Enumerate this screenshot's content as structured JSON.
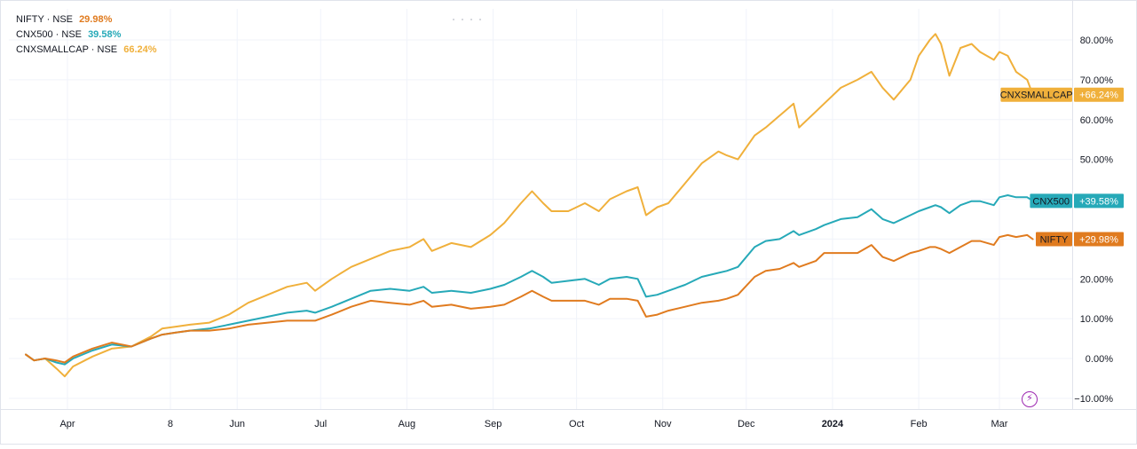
{
  "legend": [
    {
      "symbol": "NIFTY",
      "exchange": "NSE",
      "value": "29.98%",
      "color": "#e07b1f"
    },
    {
      "symbol": "CNX500",
      "exchange": "NSE",
      "value": "39.58%",
      "color": "#26a9b8"
    },
    {
      "symbol": "CNXSMALLCAP",
      "exchange": "NSE",
      "value": "66.24%",
      "color": "#f0b03b"
    }
  ],
  "chart_data": {
    "type": "line",
    "grid": true,
    "y_axis_position": "right",
    "ylim": [
      -12,
      85
    ],
    "y_ticks": [
      80,
      70,
      60,
      50,
      40,
      30,
      20,
      10,
      0,
      -10
    ],
    "y_tick_labels": [
      "80.00%",
      "70.00%",
      "60.00%",
      "50.00%",
      "40.00%",
      "30.00%",
      "20.00%",
      "10.00%",
      "0.00%",
      "−10.00%"
    ],
    "x_range": [
      "2023-03-17",
      "2024-03-17"
    ],
    "x_ticks": [
      {
        "date": "2023-04-01",
        "label": "Apr",
        "bold": false
      },
      {
        "date": "2023-05-08",
        "label": "8",
        "bold": false
      },
      {
        "date": "2023-06-01",
        "label": "Jun",
        "bold": false
      },
      {
        "date": "2023-07-01",
        "label": "Jul",
        "bold": false
      },
      {
        "date": "2023-08-01",
        "label": "Aug",
        "bold": false
      },
      {
        "date": "2023-09-01",
        "label": "Sep",
        "bold": false
      },
      {
        "date": "2023-10-01",
        "label": "Oct",
        "bold": false
      },
      {
        "date": "2023-11-01",
        "label": "Nov",
        "bold": false
      },
      {
        "date": "2023-12-01",
        "label": "Dec",
        "bold": false
      },
      {
        "date": "2024-01-01",
        "label": "2024",
        "bold": true
      },
      {
        "date": "2024-02-01",
        "label": "Feb",
        "bold": false
      },
      {
        "date": "2024-03-01",
        "label": "Mar",
        "bold": false
      }
    ],
    "series": [
      {
        "name": "CNXSMALLCAP",
        "color": "#f0b03b",
        "end_label": "CNXSMALLCAP",
        "end_value": "+66.24%",
        "end_y": 66.24,
        "points": [
          [
            "2023-03-17",
            1
          ],
          [
            "2023-03-20",
            -0.5
          ],
          [
            "2023-03-24",
            0
          ],
          [
            "2023-03-28",
            -2.5
          ],
          [
            "2023-03-31",
            -4.5
          ],
          [
            "2023-04-03",
            -2
          ],
          [
            "2023-04-10",
            0.5
          ],
          [
            "2023-04-17",
            2.5
          ],
          [
            "2023-04-24",
            3
          ],
          [
            "2023-05-01",
            5.5
          ],
          [
            "2023-05-05",
            7.5
          ],
          [
            "2023-05-10",
            8
          ],
          [
            "2023-05-15",
            8.5
          ],
          [
            "2023-05-22",
            9
          ],
          [
            "2023-05-29",
            11
          ],
          [
            "2023-06-05",
            14
          ],
          [
            "2023-06-12",
            16
          ],
          [
            "2023-06-19",
            18
          ],
          [
            "2023-06-26",
            19
          ],
          [
            "2023-06-29",
            17
          ],
          [
            "2023-07-05",
            20
          ],
          [
            "2023-07-12",
            23
          ],
          [
            "2023-07-19",
            25
          ],
          [
            "2023-07-26",
            27
          ],
          [
            "2023-08-02",
            28
          ],
          [
            "2023-08-07",
            30
          ],
          [
            "2023-08-10",
            27
          ],
          [
            "2023-08-17",
            29
          ],
          [
            "2023-08-24",
            28
          ],
          [
            "2023-08-31",
            31
          ],
          [
            "2023-09-05",
            34
          ],
          [
            "2023-09-11",
            39
          ],
          [
            "2023-09-15",
            42
          ],
          [
            "2023-09-19",
            39
          ],
          [
            "2023-09-22",
            37
          ],
          [
            "2023-09-28",
            37
          ],
          [
            "2023-10-04",
            39
          ],
          [
            "2023-10-09",
            37
          ],
          [
            "2023-10-13",
            40
          ],
          [
            "2023-10-19",
            42
          ],
          [
            "2023-10-23",
            43
          ],
          [
            "2023-10-26",
            36
          ],
          [
            "2023-10-30",
            38
          ],
          [
            "2023-11-03",
            39
          ],
          [
            "2023-11-09",
            44
          ],
          [
            "2023-11-15",
            49
          ],
          [
            "2023-11-21",
            52
          ],
          [
            "2023-11-24",
            51
          ],
          [
            "2023-11-28",
            50
          ],
          [
            "2023-12-04",
            56
          ],
          [
            "2023-12-08",
            58
          ],
          [
            "2023-12-13",
            61
          ],
          [
            "2023-12-18",
            64
          ],
          [
            "2023-12-20",
            58
          ],
          [
            "2023-12-26",
            62
          ],
          [
            "2023-12-29",
            64
          ],
          [
            "2024-01-04",
            68
          ],
          [
            "2024-01-10",
            70
          ],
          [
            "2024-01-15",
            72
          ],
          [
            "2024-01-19",
            68
          ],
          [
            "2024-01-23",
            65
          ],
          [
            "2024-01-29",
            70
          ],
          [
            "2024-02-01",
            76
          ],
          [
            "2024-02-05",
            80
          ],
          [
            "2024-02-07",
            81.5
          ],
          [
            "2024-02-09",
            79
          ],
          [
            "2024-02-12",
            71
          ],
          [
            "2024-02-16",
            78
          ],
          [
            "2024-02-20",
            79
          ],
          [
            "2024-02-23",
            77
          ],
          [
            "2024-02-28",
            75
          ],
          [
            "2024-03-01",
            77
          ],
          [
            "2024-03-04",
            76
          ],
          [
            "2024-03-07",
            72
          ],
          [
            "2024-03-11",
            70
          ],
          [
            "2024-03-13",
            66.24
          ]
        ]
      },
      {
        "name": "CNX500",
        "color": "#26a9b8",
        "end_label": "CNX500",
        "end_value": "+39.58%",
        "end_y": 39.58,
        "points": [
          [
            "2023-03-17",
            1
          ],
          [
            "2023-03-20",
            -0.5
          ],
          [
            "2023-03-24",
            0
          ],
          [
            "2023-03-28",
            -1
          ],
          [
            "2023-03-31",
            -1.5
          ],
          [
            "2023-04-03",
            0
          ],
          [
            "2023-04-10",
            2
          ],
          [
            "2023-04-17",
            3.5
          ],
          [
            "2023-04-24",
            3
          ],
          [
            "2023-05-01",
            5
          ],
          [
            "2023-05-05",
            6
          ],
          [
            "2023-05-10",
            6.5
          ],
          [
            "2023-05-15",
            7
          ],
          [
            "2023-05-22",
            7.5
          ],
          [
            "2023-05-29",
            8.5
          ],
          [
            "2023-06-05",
            9.5
          ],
          [
            "2023-06-12",
            10.5
          ],
          [
            "2023-06-19",
            11.5
          ],
          [
            "2023-06-26",
            12
          ],
          [
            "2023-06-29",
            11.5
          ],
          [
            "2023-07-05",
            13
          ],
          [
            "2023-07-12",
            15
          ],
          [
            "2023-07-19",
            17
          ],
          [
            "2023-07-26",
            17.5
          ],
          [
            "2023-08-02",
            17
          ],
          [
            "2023-08-07",
            18
          ],
          [
            "2023-08-10",
            16.5
          ],
          [
            "2023-08-17",
            17
          ],
          [
            "2023-08-24",
            16.5
          ],
          [
            "2023-08-31",
            17.5
          ],
          [
            "2023-09-05",
            18.5
          ],
          [
            "2023-09-11",
            20.5
          ],
          [
            "2023-09-15",
            22
          ],
          [
            "2023-09-19",
            20.5
          ],
          [
            "2023-09-22",
            19
          ],
          [
            "2023-09-28",
            19.5
          ],
          [
            "2023-10-04",
            20
          ],
          [
            "2023-10-09",
            18.5
          ],
          [
            "2023-10-13",
            20
          ],
          [
            "2023-10-19",
            20.5
          ],
          [
            "2023-10-23",
            20
          ],
          [
            "2023-10-26",
            15.5
          ],
          [
            "2023-10-30",
            16
          ],
          [
            "2023-11-03",
            17
          ],
          [
            "2023-11-09",
            18.5
          ],
          [
            "2023-11-15",
            20.5
          ],
          [
            "2023-11-21",
            21.5
          ],
          [
            "2023-11-24",
            22
          ],
          [
            "2023-11-28",
            23
          ],
          [
            "2023-12-04",
            28
          ],
          [
            "2023-12-08",
            29.5
          ],
          [
            "2023-12-13",
            30
          ],
          [
            "2023-12-18",
            32
          ],
          [
            "2023-12-20",
            31
          ],
          [
            "2023-12-26",
            32.5
          ],
          [
            "2023-12-29",
            33.5
          ],
          [
            "2024-01-04",
            35
          ],
          [
            "2024-01-10",
            35.5
          ],
          [
            "2024-01-15",
            37.5
          ],
          [
            "2024-01-19",
            35
          ],
          [
            "2024-01-23",
            34
          ],
          [
            "2024-01-29",
            36
          ],
          [
            "2024-02-01",
            37
          ],
          [
            "2024-02-05",
            38
          ],
          [
            "2024-02-07",
            38.5
          ],
          [
            "2024-02-09",
            38
          ],
          [
            "2024-02-12",
            36.5
          ],
          [
            "2024-02-16",
            38.5
          ],
          [
            "2024-02-20",
            39.5
          ],
          [
            "2024-02-23",
            39.5
          ],
          [
            "2024-02-28",
            38.5
          ],
          [
            "2024-03-01",
            40.5
          ],
          [
            "2024-03-04",
            41
          ],
          [
            "2024-03-07",
            40.5
          ],
          [
            "2024-03-11",
            40.5
          ],
          [
            "2024-03-13",
            39.58
          ]
        ]
      },
      {
        "name": "NIFTY",
        "color": "#e07b1f",
        "end_label": "NIFTY",
        "end_value": "+29.98%",
        "end_y": 29.98,
        "points": [
          [
            "2023-03-17",
            1
          ],
          [
            "2023-03-20",
            -0.5
          ],
          [
            "2023-03-24",
            0
          ],
          [
            "2023-03-28",
            -0.5
          ],
          [
            "2023-03-31",
            -1
          ],
          [
            "2023-04-03",
            0.5
          ],
          [
            "2023-04-10",
            2.5
          ],
          [
            "2023-04-17",
            4
          ],
          [
            "2023-04-24",
            3
          ],
          [
            "2023-05-01",
            5
          ],
          [
            "2023-05-05",
            6
          ],
          [
            "2023-05-10",
            6.5
          ],
          [
            "2023-05-15",
            7
          ],
          [
            "2023-05-22",
            7
          ],
          [
            "2023-05-29",
            7.5
          ],
          [
            "2023-06-05",
            8.5
          ],
          [
            "2023-06-12",
            9
          ],
          [
            "2023-06-19",
            9.5
          ],
          [
            "2023-06-26",
            9.5
          ],
          [
            "2023-06-29",
            9.5
          ],
          [
            "2023-07-05",
            11
          ],
          [
            "2023-07-12",
            13
          ],
          [
            "2023-07-19",
            14.5
          ],
          [
            "2023-07-26",
            14
          ],
          [
            "2023-08-02",
            13.5
          ],
          [
            "2023-08-07",
            14.5
          ],
          [
            "2023-08-10",
            13
          ],
          [
            "2023-08-17",
            13.5
          ],
          [
            "2023-08-24",
            12.5
          ],
          [
            "2023-08-31",
            13
          ],
          [
            "2023-09-05",
            13.5
          ],
          [
            "2023-09-11",
            15.5
          ],
          [
            "2023-09-15",
            17
          ],
          [
            "2023-09-19",
            15.5
          ],
          [
            "2023-09-22",
            14.5
          ],
          [
            "2023-09-28",
            14.5
          ],
          [
            "2023-10-04",
            14.5
          ],
          [
            "2023-10-09",
            13.5
          ],
          [
            "2023-10-13",
            15
          ],
          [
            "2023-10-19",
            15
          ],
          [
            "2023-10-23",
            14.5
          ],
          [
            "2023-10-26",
            10.5
          ],
          [
            "2023-10-30",
            11
          ],
          [
            "2023-11-03",
            12
          ],
          [
            "2023-11-09",
            13
          ],
          [
            "2023-11-15",
            14
          ],
          [
            "2023-11-21",
            14.5
          ],
          [
            "2023-11-24",
            15
          ],
          [
            "2023-11-28",
            16
          ],
          [
            "2023-12-04",
            20.5
          ],
          [
            "2023-12-08",
            22
          ],
          [
            "2023-12-13",
            22.5
          ],
          [
            "2023-12-18",
            24
          ],
          [
            "2023-12-20",
            23
          ],
          [
            "2023-12-26",
            24.5
          ],
          [
            "2023-12-29",
            26.5
          ],
          [
            "2024-01-04",
            26.5
          ],
          [
            "2024-01-10",
            26.5
          ],
          [
            "2024-01-15",
            28.5
          ],
          [
            "2024-01-19",
            25.5
          ],
          [
            "2024-01-23",
            24.5
          ],
          [
            "2024-01-29",
            26.5
          ],
          [
            "2024-02-01",
            27
          ],
          [
            "2024-02-05",
            28
          ],
          [
            "2024-02-07",
            28
          ],
          [
            "2024-02-09",
            27.5
          ],
          [
            "2024-02-12",
            26.5
          ],
          [
            "2024-02-16",
            28
          ],
          [
            "2024-02-20",
            29.5
          ],
          [
            "2024-02-23",
            29.5
          ],
          [
            "2024-02-28",
            28.5
          ],
          [
            "2024-03-01",
            30.5
          ],
          [
            "2024-03-04",
            31
          ],
          [
            "2024-03-07",
            30.5
          ],
          [
            "2024-03-11",
            31
          ],
          [
            "2024-03-13",
            29.98
          ]
        ]
      }
    ]
  }
}
